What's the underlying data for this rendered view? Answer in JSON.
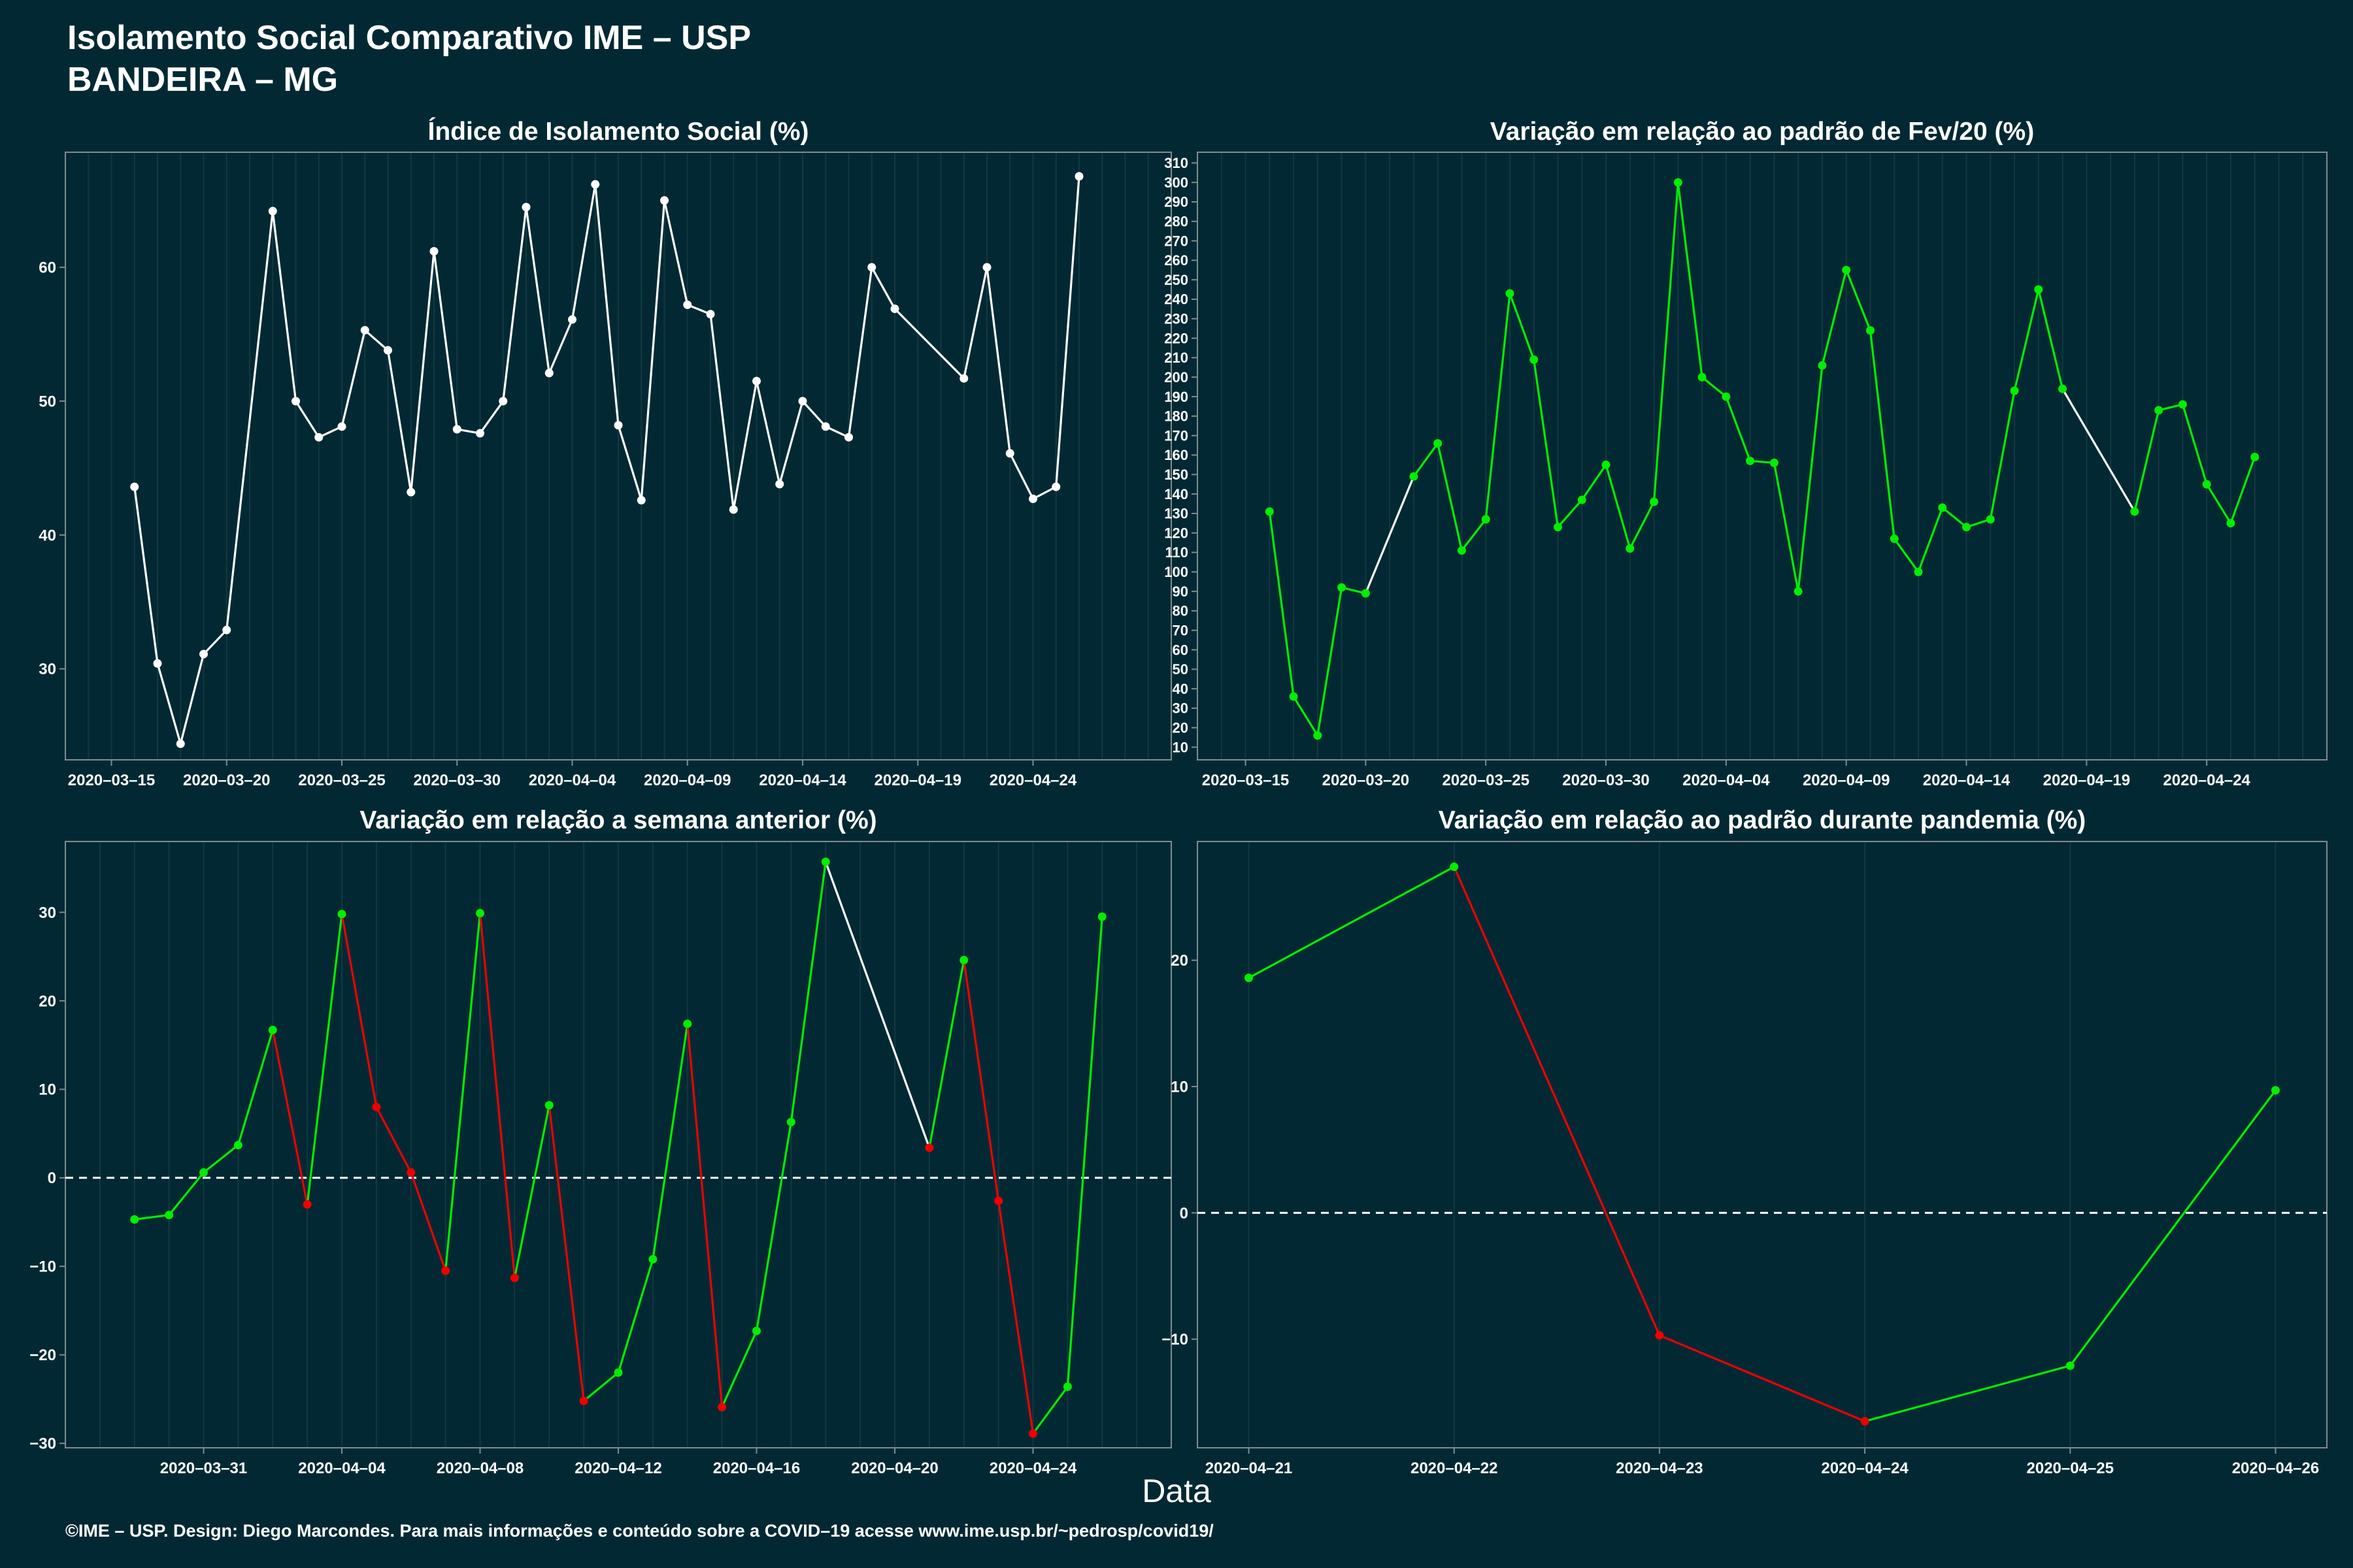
{
  "header": {
    "title_line1": "Isolamento Social Comparativo IME – USP",
    "title_line2": "BANDEIRA – MG"
  },
  "xaxis_label": "Data",
  "footer": "©IME – USP. Design: Diego Marcondes. Para mais informações e conteúdo sobre a COVID–19 acesse www.ime.usp.br/~pedrosp/covid19/",
  "colors": {
    "background": "#022933",
    "panel_border": "#7f8c8d",
    "white": "#ffffff",
    "green": "#00ee00",
    "red": "#ee0000"
  },
  "chart_data": [
    {
      "id": "p1",
      "type": "line",
      "title": "Índice de Isolamento Social (%)",
      "xlabel": "",
      "ylabel": "",
      "x_type": "date",
      "xlim": [
        "2020-03-13",
        "2020-04-30"
      ],
      "ylim": [
        23.2,
        68.6
      ],
      "xticks": [
        "2020-03-15",
        "2020-03-20",
        "2020-03-25",
        "2020-03-30",
        "2020-04-04",
        "2020-04-09",
        "2020-04-14",
        "2020-04-19",
        "2020-04-24"
      ],
      "yticks": [
        30,
        40,
        50,
        60
      ],
      "baseline": null,
      "color_mode": "white",
      "x": [
        "2020-03-16",
        "2020-03-17",
        "2020-03-18",
        "2020-03-19",
        "2020-03-20",
        "2020-03-22",
        "2020-03-23",
        "2020-03-24",
        "2020-03-25",
        "2020-03-26",
        "2020-03-27",
        "2020-03-28",
        "2020-03-29",
        "2020-03-30",
        "2020-03-31",
        "2020-04-01",
        "2020-04-02",
        "2020-04-03",
        "2020-04-04",
        "2020-04-05",
        "2020-04-06",
        "2020-04-07",
        "2020-04-08",
        "2020-04-09",
        "2020-04-10",
        "2020-04-11",
        "2020-04-12",
        "2020-04-13",
        "2020-04-14",
        "2020-04-15",
        "2020-04-16",
        "2020-04-17",
        "2020-04-18",
        "2020-04-21",
        "2020-04-22",
        "2020-04-23",
        "2020-04-24",
        "2020-04-25",
        "2020-04-26"
      ],
      "y": [
        43.6,
        30.4,
        24.4,
        31.1,
        32.9,
        64.2,
        50.0,
        47.3,
        48.1,
        55.3,
        53.8,
        43.2,
        61.2,
        47.9,
        47.6,
        50.0,
        64.5,
        52.1,
        56.1,
        66.2,
        48.2,
        42.6,
        65.0,
        57.2,
        56.5,
        41.9,
        51.5,
        43.8,
        50.0,
        48.1,
        47.3,
        60.0,
        56.9,
        51.7,
        60.0,
        46.1,
        42.7,
        43.6,
        66.8
      ]
    },
    {
      "id": "p2",
      "type": "line",
      "title": "Variação em relação ao padrão de Fev/20 (%)",
      "xlabel": "",
      "ylabel": "",
      "x_type": "date",
      "xlim": [
        "2020-03-13",
        "2020-04-29"
      ],
      "ylim": [
        3.5,
        315.5
      ],
      "xticks": [
        "2020-03-15",
        "2020-03-20",
        "2020-03-25",
        "2020-03-30",
        "2020-04-04",
        "2020-04-09",
        "2020-04-14",
        "2020-04-19",
        "2020-04-24"
      ],
      "yticks": [
        10,
        20,
        30,
        40,
        50,
        60,
        70,
        80,
        90,
        100,
        110,
        120,
        130,
        140,
        150,
        160,
        170,
        180,
        190,
        200,
        210,
        220,
        230,
        240,
        250,
        260,
        270,
        280,
        290,
        300,
        310
      ],
      "baseline": null,
      "color_mode": "green_gap",
      "x": [
        "2020-03-16",
        "2020-03-17",
        "2020-03-18",
        "2020-03-19",
        "2020-03-20",
        "2020-03-22",
        "2020-03-23",
        "2020-03-24",
        "2020-03-25",
        "2020-03-26",
        "2020-03-27",
        "2020-03-28",
        "2020-03-29",
        "2020-03-30",
        "2020-03-31",
        "2020-04-01",
        "2020-04-02",
        "2020-04-03",
        "2020-04-04",
        "2020-04-05",
        "2020-04-06",
        "2020-04-07",
        "2020-04-08",
        "2020-04-09",
        "2020-04-10",
        "2020-04-11",
        "2020-04-12",
        "2020-04-13",
        "2020-04-14",
        "2020-04-15",
        "2020-04-16",
        "2020-04-17",
        "2020-04-18",
        "2020-04-21",
        "2020-04-22",
        "2020-04-23",
        "2020-04-24",
        "2020-04-25",
        "2020-04-26"
      ],
      "y": [
        131,
        36,
        16,
        92,
        89,
        149,
        166,
        111,
        127,
        243,
        209,
        123,
        137,
        155,
        112,
        136,
        300,
        200,
        190,
        157,
        156,
        90,
        206,
        255,
        224,
        117,
        100,
        133,
        123,
        127,
        193,
        245,
        194,
        131,
        183,
        186,
        145,
        125,
        159
      ]
    },
    {
      "id": "p3",
      "type": "line",
      "title": "Variação em relação a semana anterior (%)",
      "xlabel": "",
      "ylabel": "",
      "x_type": "date",
      "xlim": [
        "2020-03-27",
        "2020-04-28"
      ],
      "ylim": [
        -30.5,
        38.0
      ],
      "xticks": [
        "2020-03-31",
        "2020-04-04",
        "2020-04-08",
        "2020-04-12",
        "2020-04-16",
        "2020-04-20",
        "2020-04-24"
      ],
      "yticks": [
        -30,
        -20,
        -10,
        0,
        10,
        20,
        30
      ],
      "baseline": 0,
      "color_mode": "updown",
      "x": [
        "2020-03-29",
        "2020-03-30",
        "2020-03-31",
        "2020-04-01",
        "2020-04-02",
        "2020-04-03",
        "2020-04-04",
        "2020-04-05",
        "2020-04-06",
        "2020-04-07",
        "2020-04-08",
        "2020-04-09",
        "2020-04-10",
        "2020-04-11",
        "2020-04-12",
        "2020-04-13",
        "2020-04-14",
        "2020-04-15",
        "2020-04-16",
        "2020-04-17",
        "2020-04-18",
        "2020-04-21",
        "2020-04-22",
        "2020-04-23",
        "2020-04-24",
        "2020-04-25",
        "2020-04-26"
      ],
      "y": [
        -4.7,
        -4.2,
        0.6,
        3.7,
        16.7,
        -3.0,
        29.8,
        8.0,
        0.6,
        -10.5,
        29.9,
        -11.3,
        8.2,
        -25.2,
        -22.0,
        -9.2,
        17.4,
        -25.9,
        -17.3,
        6.3,
        35.7,
        3.4,
        24.6,
        -2.6,
        -28.9,
        -23.6,
        29.5
      ]
    },
    {
      "id": "p4",
      "type": "line",
      "title": "Variação em relação ao padrão durante pandemia (%)",
      "xlabel": "",
      "ylabel": "",
      "x_type": "date",
      "xlim": [
        "2020-04-20.75",
        "2020-04-26.25"
      ],
      "ylim": [
        -18.6,
        29.4
      ],
      "xticks": [
        "2020-04-21",
        "2020-04-22",
        "2020-04-23",
        "2020-04-24",
        "2020-04-25",
        "2020-04-26"
      ],
      "yticks": [
        -10,
        0,
        10,
        20
      ],
      "baseline": 0,
      "color_mode": "updown",
      "x": [
        "2020-04-21",
        "2020-04-22",
        "2020-04-23",
        "2020-04-24",
        "2020-04-25",
        "2020-04-26"
      ],
      "y": [
        18.6,
        27.4,
        -9.7,
        -16.5,
        -12.1,
        9.7
      ]
    }
  ]
}
